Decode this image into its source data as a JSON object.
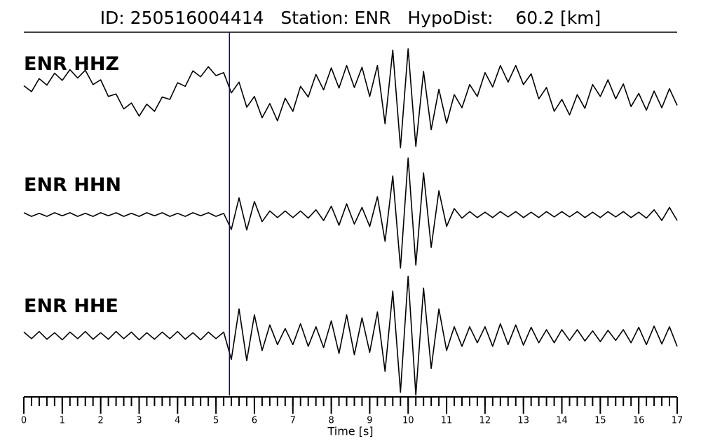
{
  "chart_data": {
    "type": "line",
    "title": "ID: 250516004414   Station: ENR   HypoDist:    60.2 [km]",
    "xlabel": "Time [s]",
    "xlim": [
      0,
      17
    ],
    "xticks": [
      0,
      1,
      2,
      3,
      4,
      5,
      6,
      7,
      8,
      9,
      10,
      11,
      12,
      13,
      14,
      15,
      16,
      17
    ],
    "minor_tick_step": 0.2,
    "ylim": [
      -100,
      100
    ],
    "pick_time": 5.35,
    "pick_color": "#0000cc",
    "name_color": "#4c9a00",
    "x": [
      0,
      0.2,
      0.4,
      0.6,
      0.8,
      1,
      1.2,
      1.4,
      1.6,
      1.8,
      2,
      2.2,
      2.4,
      2.6,
      2.8,
      3,
      3.2,
      3.4,
      3.6,
      3.8,
      4,
      4.2,
      4.4,
      4.6,
      4.8,
      5,
      5.2,
      5.4,
      5.6,
      5.8,
      6,
      6.2,
      6.4,
      6.6,
      6.8,
      7,
      7.2,
      7.4,
      7.6,
      7.8,
      8,
      8.2,
      8.4,
      8.6,
      8.8,
      9,
      9.2,
      9.4,
      9.6,
      9.8,
      10,
      10.2,
      10.4,
      10.6,
      10.8,
      11,
      11.2,
      11.4,
      11.6,
      11.8,
      12,
      12.2,
      12.4,
      12.6,
      12.8,
      13,
      13.2,
      13.4,
      13.6,
      13.8,
      14,
      14.2,
      14.4,
      14.6,
      14.8,
      15,
      15.2,
      15.4,
      15.6,
      15.8,
      16,
      16.2,
      16.4,
      16.6,
      16.8,
      17
    ],
    "series": [
      {
        "name": "ENR HHZ",
        "color": "#000000",
        "values": [
          13,
          3,
          25,
          14,
          34,
          22,
          40,
          26,
          39,
          15,
          23,
          -5,
          -1,
          -26,
          -16,
          -38,
          -18,
          -30,
          -6,
          -10,
          18,
          12,
          38,
          28,
          45,
          30,
          35,
          1,
          19,
          -23,
          -5,
          -41,
          -17,
          -46,
          -8,
          -30,
          12,
          -6,
          32,
          6,
          43,
          9,
          47,
          10,
          44,
          -5,
          47,
          -51,
          73,
          -91,
          75,
          -89,
          37,
          -61,
          7,
          -50,
          -2,
          -24,
          15,
          -5,
          35,
          11,
          47,
          19,
          47,
          15,
          33,
          -9,
          10,
          -30,
          -10,
          -36,
          -2,
          -25,
          15,
          -5,
          23,
          -9,
          16,
          -22,
          0,
          -28,
          4,
          -24,
          8,
          -20
        ]
      },
      {
        "name": "ENR HHN",
        "color": "#000000",
        "values": [
          3,
          -3,
          2,
          -3,
          3,
          -2,
          3,
          -3,
          2,
          -3,
          3,
          -2,
          3,
          -3,
          2,
          -3,
          3,
          -2,
          3,
          -3,
          2,
          -3,
          3,
          -2,
          3,
          -3,
          2,
          -25,
          28,
          -26,
          22,
          -12,
          6,
          -5,
          6,
          -5,
          6,
          -6,
          8,
          -10,
          14,
          -18,
          18,
          -16,
          12,
          -20,
          30,
          -45,
          65,
          -90,
          95,
          -85,
          70,
          -55,
          40,
          -20,
          10,
          -6,
          5,
          -5,
          4,
          -5,
          5,
          -4,
          5,
          -5,
          4,
          -5,
          5,
          -4,
          5,
          -4,
          5,
          -5,
          4,
          -5,
          5,
          -4,
          5,
          -5,
          4,
          -6,
          8,
          -10,
          12,
          -10
        ]
      },
      {
        "name": "ENR HHE",
        "color": "#000000",
        "values": [
          6,
          -5,
          7,
          -6,
          5,
          -7,
          6,
          -5,
          7,
          -6,
          5,
          -6,
          7,
          -5,
          6,
          -7,
          5,
          -6,
          6,
          -5,
          7,
          -6,
          5,
          -7,
          6,
          -5,
          6,
          -40,
          45,
          -42,
          35,
          -25,
          18,
          -15,
          12,
          -15,
          20,
          -18,
          15,
          -20,
          25,
          -30,
          35,
          -32,
          30,
          -28,
          40,
          -60,
          75,
          -95,
          100,
          -100,
          80,
          -55,
          45,
          -25,
          15,
          -18,
          15,
          -12,
          15,
          -18,
          20,
          -15,
          18,
          -16,
          14,
          -12,
          10,
          -12,
          10,
          -8,
          10,
          -9,
          8,
          -10,
          9,
          -8,
          10,
          -12,
          14,
          -15,
          16,
          -14,
          15,
          -18
        ]
      }
    ]
  }
}
